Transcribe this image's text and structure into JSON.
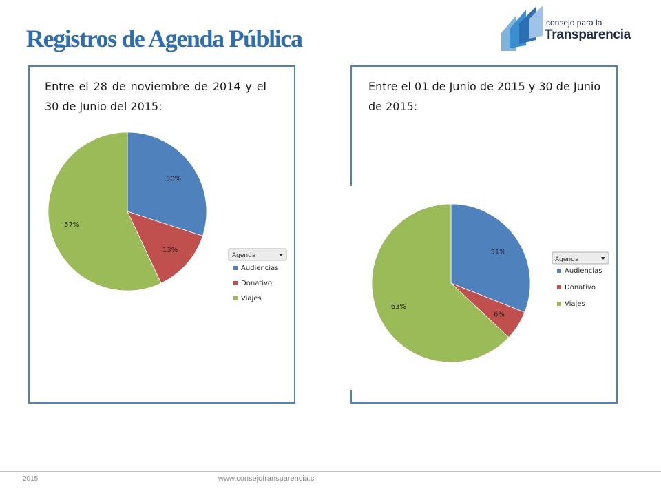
{
  "page": {
    "title": "Registros de Agenda Pública",
    "footer_year": "2015",
    "footer_url": "www.consejotransparencia.cl"
  },
  "logo": {
    "line1": "consejo para la",
    "line2": "Transparencia"
  },
  "colors": {
    "accent": "#4f81bd",
    "title": "#2f6db3",
    "audiencias": "#4f81bd",
    "donativo": "#c0504d",
    "viajes": "#9bbb59"
  },
  "chart_data": [
    {
      "type": "pie",
      "caption": "Entre el 28 de noviembre de 2014 y el 30 de Junio del 2015:",
      "legend_title": "Agenda",
      "legend_position": "right",
      "categories": [
        "Audiencias",
        "Donativo",
        "Viajes"
      ],
      "values": [
        30,
        13,
        57
      ],
      "data_labels": [
        "30%",
        "13%",
        "57%"
      ],
      "colors": [
        "#4f81bd",
        "#c0504d",
        "#9bbb59"
      ]
    },
    {
      "type": "pie",
      "caption": "Entre el 01 de Junio de 2015 y 30 de Junio de 2015:",
      "legend_title": "Agenda",
      "legend_position": "right",
      "categories": [
        "Audiencias",
        "Donativo",
        "Viajes"
      ],
      "values": [
        31,
        6,
        63
      ],
      "data_labels": [
        "31%",
        "6%",
        "63%"
      ],
      "colors": [
        "#4f81bd",
        "#c0504d",
        "#9bbb59"
      ]
    }
  ]
}
